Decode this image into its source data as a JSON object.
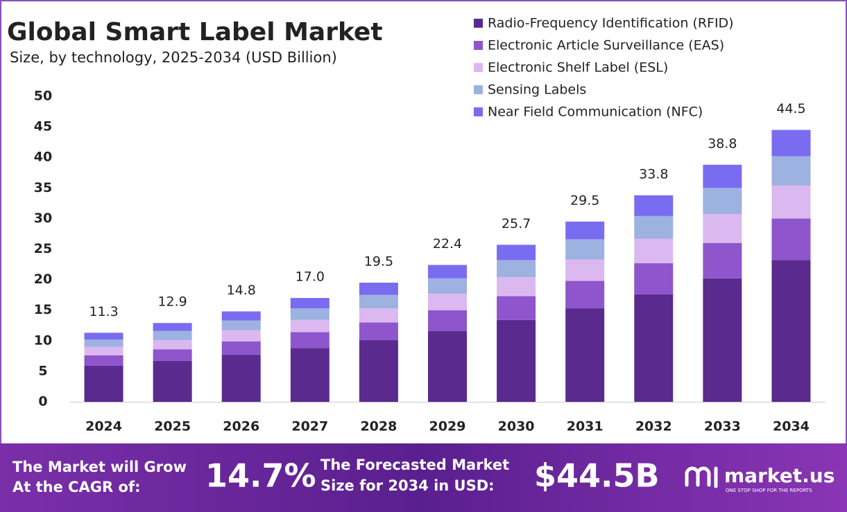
{
  "chart_data": {
    "type": "stacked_bar",
    "title": "Global Smart Label Market",
    "subtitle": "Size, by technology, 2025-2034 (USD Billion)",
    "categories": [
      "2024",
      "2025",
      "2026",
      "2027",
      "2028",
      "2029",
      "2030",
      "2031",
      "2032",
      "2033",
      "2034"
    ],
    "series": [
      {
        "name": "Radio-Frequency Identification (RFID)",
        "color": "#5b2a8e",
        "values": [
          5.9,
          6.7,
          7.7,
          8.8,
          10.1,
          11.6,
          13.4,
          15.3,
          17.6,
          20.2,
          23.2
        ]
      },
      {
        "name": "Electronic Article Surveillance (EAS)",
        "color": "#8e55cc",
        "values": [
          1.7,
          1.9,
          2.2,
          2.6,
          2.9,
          3.4,
          3.9,
          4.5,
          5.1,
          5.8,
          6.8
        ]
      },
      {
        "name": "Electronic Shelf Label (ESL)",
        "color": "#dcb8f0",
        "values": [
          1.4,
          1.5,
          1.8,
          2.0,
          2.3,
          2.7,
          3.1,
          3.5,
          4.0,
          4.7,
          5.4
        ]
      },
      {
        "name": "Sensing Labels",
        "color": "#9db2e0",
        "values": [
          1.2,
          1.5,
          1.6,
          1.9,
          2.2,
          2.5,
          2.8,
          3.3,
          3.7,
          4.3,
          4.8
        ]
      },
      {
        "name": "Near Field Communication (NFC)",
        "color": "#7a6cf0",
        "values": [
          1.1,
          1.3,
          1.5,
          1.7,
          2.0,
          2.2,
          2.5,
          2.9,
          3.4,
          3.8,
          4.3
        ]
      }
    ],
    "totals": [
      11.3,
      12.9,
      14.8,
      17.0,
      19.5,
      22.4,
      25.7,
      29.5,
      33.8,
      38.8,
      44.5
    ],
    "total_value_labels": [
      "11.3",
      "12.9",
      "14.8",
      "17.0",
      "19.5",
      "22.4",
      "25.7",
      "29.5",
      "33.8",
      "38.8",
      "44.5"
    ],
    "ylim": [
      0,
      50
    ],
    "yticks": [
      0,
      5,
      10,
      15,
      20,
      25,
      30,
      35,
      40,
      45,
      50
    ],
    "grid": false,
    "legend": "top-right"
  },
  "footer": {
    "cagr_text": [
      "The Market will Grow",
      "At the CAGR of:"
    ],
    "cagr_value": "14.7%",
    "forecast_text": [
      "The Forecasted Market",
      "Size for 2034 in USD:"
    ],
    "forecast_value": "$44.5B",
    "brand": "market.us",
    "tagline": "ONE STOP SHOP FOR THE REPORTS"
  }
}
